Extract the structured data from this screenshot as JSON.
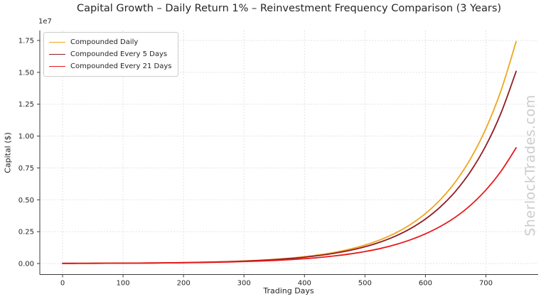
{
  "title": "Capital Growth – Daily Return 1% – Reinvestment Frequency Comparison (3 Years)",
  "watermark": "SherlockTrades.com",
  "legend": {
    "items": [
      {
        "label": "Compounded Daily",
        "color": "#F2A41F"
      },
      {
        "label": "Compounded Every 5 Days",
        "color": "#8F1D20"
      },
      {
        "label": "Compounded Every 21 Days",
        "color": "#E8191C"
      }
    ]
  },
  "chart_data": {
    "type": "line",
    "title": "Capital Growth – Daily Return 1% – Reinvestment Frequency Comparison (3 Years)",
    "xlabel": "Trading Days",
    "ylabel": "Capital ($)",
    "y_offset_label": "1e7",
    "x_ticks": [
      0,
      100,
      200,
      300,
      400,
      500,
      600,
      700
    ],
    "y_ticks": [
      0,
      2500000,
      5000000,
      7500000,
      10000000,
      12500000,
      15000000,
      17500000
    ],
    "y_tick_labels": [
      "0.00",
      "0.25",
      "0.50",
      "0.75",
      "1.00",
      "1.25",
      "1.50",
      "1.75"
    ],
    "xlim": [
      -37,
      787
    ],
    "ylim": [
      -860000,
      18290000
    ],
    "grid": true,
    "legend_position": "upper left",
    "x": [
      0,
      25,
      50,
      75,
      100,
      125,
      150,
      175,
      200,
      225,
      250,
      275,
      300,
      325,
      350,
      375,
      400,
      425,
      450,
      475,
      500,
      525,
      550,
      575,
      600,
      625,
      650,
      675,
      700,
      725,
      750
    ],
    "series": [
      {
        "name": "Compounded Daily",
        "color": "#F2A41F",
        "values": [
          10000,
          12824,
          16446,
          21092,
          27048,
          34685,
          44484,
          57046,
          73160,
          93826,
          120320,
          154310,
          197885,
          253770,
          325386,
          417350,
          535239,
          686390,
          880500,
          1128900,
          1447700,
          1856600,
          2380900,
          3053500,
          3915800,
          5021600,
          6438800,
          8258200,
          10591000,
          13582000,
          17416000
        ]
      },
      {
        "name": "Compounded Every 5 Days",
        "color": "#8F1D20",
        "values": [
          10000,
          12763,
          16289,
          20789,
          26533,
          33864,
          43219,
          55160,
          70400,
          89850,
          114674,
          146356,
          186792,
          238399,
          304264,
          388327,
          495614,
          632524,
          807300,
          1030300,
          1315000,
          1678500,
          2142400,
          2734400,
          3490000,
          4453500,
          5683500,
          7254000,
          9258300,
          11816000,
          15082000
        ]
      },
      {
        "name": "Compounded Every 21 Days",
        "color": "#E8191C",
        "values": [
          10000,
          12584,
          15812,
          19842,
          24866,
          31125,
          39114,
          49166,
          61715,
          77366,
          96869,
          121566,
          152863,
          191944,
          240697,
          301463,
          377783,
          475223,
          596924,
          748784,
          938101,
          1173910,
          1477250,
          1856220,
          2329210,
          2919000,
          3653780,
          4591660,
          5771670,
          7244790,
          9082090
        ]
      }
    ]
  }
}
